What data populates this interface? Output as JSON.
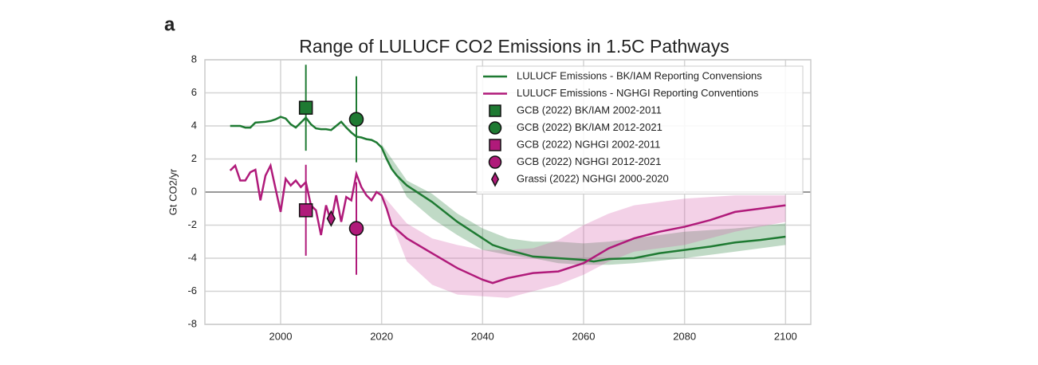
{
  "panel_label": "a",
  "chart_data": {
    "type": "line",
    "title": "Range of LULUCF CO2 Emissions in 1.5C Pathways",
    "y_label": "Gt CO2/yr",
    "xlim": [
      1985,
      2105
    ],
    "ylim": [
      -8,
      8
    ],
    "xticks": [
      2000,
      2020,
      2040,
      2060,
      2080,
      2100
    ],
    "yticks": [
      -8,
      -6,
      -4,
      -2,
      0,
      2,
      4,
      6,
      8
    ],
    "grid": true,
    "legend": "upper right",
    "series": [
      {
        "name": "LULUCF Emissions - BK/IAM Reporting Convensions",
        "color": "#1e7a32",
        "x": [
          1990,
          1992,
          1993,
          1994,
          1995,
          1997,
          1998,
          1999,
          2000,
          2001,
          2002,
          2003,
          2004,
          2005,
          2006,
          2007,
          2008,
          2009,
          2010,
          2011,
          2012,
          2013,
          2014,
          2015,
          2016,
          2017,
          2018,
          2019,
          2020,
          2021,
          2022,
          2023,
          2025,
          2030,
          2035,
          2040,
          2042,
          2045,
          2050,
          2055,
          2060,
          2062,
          2065,
          2070,
          2075,
          2080,
          2085,
          2090,
          2095,
          2100
        ],
        "values": [
          4.0,
          4.0,
          3.9,
          3.9,
          4.2,
          4.25,
          4.3,
          4.4,
          4.55,
          4.45,
          4.1,
          3.9,
          4.2,
          4.5,
          4.1,
          3.85,
          3.8,
          3.8,
          3.75,
          4.0,
          4.25,
          3.9,
          3.6,
          3.35,
          3.3,
          3.2,
          3.15,
          3.0,
          2.7,
          2.0,
          1.4,
          1.0,
          0.4,
          -0.6,
          -1.8,
          -2.8,
          -3.2,
          -3.5,
          -3.9,
          -4.0,
          -4.1,
          -4.2,
          -4.05,
          -4.0,
          -3.7,
          -3.5,
          -3.3,
          -3.05,
          -2.9,
          -2.7
        ]
      },
      {
        "name": "LULUCF Emissions - NGHGI Reporting Conventions",
        "color": "#b01a7a",
        "x": [
          1990,
          1991,
          1992,
          1993,
          1994,
          1995,
          1996,
          1997,
          1998,
          1999,
          2000,
          2001,
          2002,
          2003,
          2004,
          2005,
          2006,
          2007,
          2008,
          2009,
          2010,
          2011,
          2012,
          2013,
          2014,
          2015,
          2016,
          2017,
          2018,
          2019,
          2020,
          2021,
          2022,
          2025,
          2030,
          2035,
          2040,
          2042,
          2045,
          2050,
          2055,
          2060,
          2065,
          2070,
          2075,
          2080,
          2085,
          2090,
          2095,
          2100
        ],
        "values": [
          1.3,
          1.6,
          0.7,
          0.7,
          1.2,
          1.35,
          -0.5,
          1.0,
          1.6,
          0.2,
          -1.2,
          0.8,
          0.4,
          0.7,
          0.3,
          0.6,
          -0.8,
          -1.1,
          -2.6,
          -0.8,
          -1.8,
          -0.2,
          -1.8,
          -0.3,
          -0.5,
          1.1,
          0.3,
          -0.2,
          -0.5,
          0.0,
          -0.2,
          -1.0,
          -2.0,
          -2.8,
          -3.7,
          -4.6,
          -5.3,
          -5.5,
          -5.2,
          -4.9,
          -4.8,
          -4.3,
          -3.4,
          -2.8,
          -2.4,
          -2.1,
          -1.7,
          -1.2,
          -1.0,
          -0.8
        ]
      }
    ],
    "bands": [
      {
        "color": "#1e7a32",
        "x": [
          2020,
          2025,
          2030,
          2035,
          2040,
          2045,
          2050,
          2055,
          2060,
          2065,
          2070,
          2080,
          2090,
          2100
        ],
        "lower": [
          2.7,
          -0.3,
          -1.6,
          -2.6,
          -3.5,
          -3.8,
          -4.0,
          -4.3,
          -4.4,
          -4.4,
          -4.3,
          -4.0,
          -3.6,
          -3.2
        ],
        "upper": [
          2.9,
          0.7,
          -0.1,
          -1.3,
          -2.2,
          -2.8,
          -3.0,
          -3.0,
          -3.1,
          -3.0,
          -2.8,
          -2.4,
          -2.2,
          -1.9
        ]
      },
      {
        "color": "#d45aa8",
        "x": [
          2020,
          2025,
          2030,
          2035,
          2040,
          2045,
          2050,
          2055,
          2060,
          2065,
          2070,
          2080,
          2090,
          2100
        ],
        "lower": [
          -0.3,
          -4.2,
          -5.6,
          -6.2,
          -6.3,
          -6.4,
          -6.0,
          -5.6,
          -5.0,
          -4.2,
          -3.6,
          -3.2,
          -2.4,
          -1.8
        ],
        "upper": [
          -0.1,
          -1.9,
          -2.8,
          -3.2,
          -3.5,
          -3.5,
          -3.4,
          -2.9,
          -2.0,
          -1.3,
          -0.8,
          -0.4,
          -0.2,
          -0.2
        ]
      }
    ],
    "points": [
      {
        "name": "GCB (2022) BK/IAM 2002-2011",
        "color": "#1e7a32",
        "marker": "square",
        "x": 2005,
        "value": 5.1,
        "error": 2.6
      },
      {
        "name": "GCB (2022) BK/IAM 2012-2021",
        "color": "#1e7a32",
        "marker": "circle",
        "x": 2015,
        "value": 4.4,
        "error": 2.6
      },
      {
        "name": "GCB (2022) NGHGI 2002-2011",
        "color": "#b01a7a",
        "marker": "square",
        "x": 2005,
        "value": -1.1,
        "error": 2.75
      },
      {
        "name": "GCB (2022) NGHGI 2012-2021",
        "color": "#b01a7a",
        "marker": "circle",
        "x": 2015,
        "value": -2.2,
        "error": 2.8
      },
      {
        "name": "Grassi (2022) NGHGI 2000-2020",
        "color": "#b01a7a",
        "marker": "diamond",
        "x": 2010,
        "value": -1.6
      }
    ]
  }
}
